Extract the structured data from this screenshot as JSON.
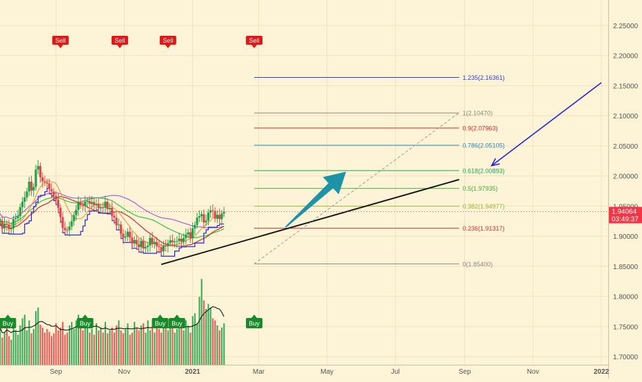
{
  "chart_data": {
    "type": "candlestick",
    "y_axis": {
      "range": [
        1.68,
        2.29
      ],
      "tick_labels": [
        "2.25000",
        "2.20000",
        "2.15000",
        "2.10000",
        "2.05000",
        "2.00000",
        "1.95000",
        "1.90000",
        "1.85000",
        "1.80000",
        "1.75000",
        "1.70000"
      ],
      "tick_values": [
        2.25,
        2.2,
        2.15,
        2.1,
        2.05,
        2.0,
        1.95,
        1.9,
        1.85,
        1.8,
        1.75,
        1.7
      ]
    },
    "x_axis": {
      "tick_labels": [
        "Sep",
        "Nov",
        "2021",
        "Mar",
        "May",
        "Jul",
        "Sep",
        "Nov",
        "2022"
      ],
      "tick_dates": [
        "2020-09-01",
        "2020-11-01",
        "2021-01-01",
        "2021-03-01",
        "2021-05-01",
        "2021-07-01",
        "2021-09-01",
        "2021-11-01",
        "2022-01-01"
      ],
      "range": [
        "2020-07-13",
        "2022-01-15"
      ]
    },
    "last_price": {
      "value": 1.94064,
      "label": "1.94064",
      "countdown": "03:49:37",
      "color": "#f23645"
    },
    "fibonacci": [
      {
        "ratio": "1.235",
        "value": 2.16361,
        "label": "1.235(2.16361)",
        "color": "#2b3fd6"
      },
      {
        "ratio": "1",
        "value": 2.1047,
        "label": "1(2.10470)",
        "color": "#888888"
      },
      {
        "ratio": "0.9",
        "value": 2.07963,
        "label": "0.9(2.07963)",
        "color": "#e02424"
      },
      {
        "ratio": "0.786",
        "value": 2.05105,
        "label": "0.786(2.05105)",
        "color": "#2a8cc4"
      },
      {
        "ratio": "0.618",
        "value": 2.00893,
        "label": "0.618(2.00893)",
        "color": "#18a85a"
      },
      {
        "ratio": "0.5",
        "value": 1.97935,
        "label": "0.5(1.97935)",
        "color": "#3cae3c"
      },
      {
        "ratio": "0.382",
        "value": 1.94977,
        "label": "0.382(1.94977)",
        "color": "#98b830"
      },
      {
        "ratio": "0.236",
        "value": 1.91317,
        "label": "0.236(1.91317)",
        "color": "#e03030"
      },
      {
        "ratio": "0",
        "value": 1.854,
        "label": "0(1.85400)",
        "color": "#888888"
      }
    ],
    "signals": {
      "sell": [
        {
          "label": "Sell",
          "date": "2020-09-05"
        },
        {
          "label": "Sell",
          "date": "2020-10-28"
        },
        {
          "label": "Sell",
          "date": "2020-12-10"
        },
        {
          "label": "Sell",
          "date": "2021-02-25"
        }
      ],
      "buy": [
        {
          "label": "Buy",
          "date": "2020-07-20"
        },
        {
          "label": "Buy",
          "date": "2020-09-27"
        },
        {
          "label": "Buy",
          "date": "2020-12-03"
        },
        {
          "label": "Buy",
          "date": "2020-12-18"
        },
        {
          "label": "Buy",
          "date": "2021-02-25"
        }
      ]
    },
    "trendlines": [
      {
        "from": {
          "date": "2020-12-04",
          "value": 1.853
        },
        "to": {
          "date": "2021-08-27",
          "value": 1.994
        },
        "color": "#1a1a1a"
      },
      {
        "from": {
          "date": "2021-02-25",
          "value": 1.854
        },
        "to": {
          "date": "2021-08-27",
          "value": 2.105
        },
        "color": "#9a9a9a",
        "dashed": true
      }
    ],
    "arrows": [
      {
        "from": {
          "date": "2021-03-25",
          "value": 1.915
        },
        "to": {
          "date": "2021-05-18",
          "value": 2.007
        },
        "color": "#1e93a8"
      },
      {
        "from": {
          "date": "2022-01-01",
          "value": 2.155
        },
        "to": {
          "date": "2021-09-25",
          "value": 2.017
        },
        "color": "#2323d4"
      }
    ],
    "price_series": {
      "start_date": "2020-07-13",
      "interval_days": 2,
      "close": [
        1.9257,
        1.9128,
        1.9208,
        1.9193,
        1.9114,
        1.9129,
        1.9282,
        1.9297,
        1.9334,
        1.9481,
        1.9571,
        1.9643,
        1.9741,
        1.9904,
        1.9759,
        1.9818,
        2.0106,
        2.0165,
        1.9979,
        1.991,
        1.9894,
        1.9875,
        1.9783,
        1.9743,
        1.967,
        1.9605,
        1.9472,
        1.9317,
        1.9137,
        1.91,
        1.9099,
        1.9159,
        1.9249,
        1.9349,
        1.9439,
        1.9563,
        1.9513,
        1.9498,
        1.9571,
        1.9587,
        1.9537,
        1.9567,
        1.9514,
        1.9535,
        1.9463,
        1.9482,
        1.9472,
        1.9572,
        1.9449,
        1.947,
        1.934,
        1.9306,
        1.9183,
        1.9193,
        1.9041,
        1.8975,
        1.8993,
        1.9074,
        1.8978,
        1.8879,
        1.8937,
        1.8863,
        1.8816,
        1.8922,
        1.8795,
        1.882,
        1.8843,
        1.8971,
        1.887,
        1.8903,
        1.8834,
        1.8817,
        1.8747,
        1.8843,
        1.8832,
        1.8885,
        1.8931,
        1.89,
        1.8908,
        1.8919,
        1.8958,
        1.8906,
        1.8969,
        1.9026,
        1.9065,
        1.8965,
        1.9129,
        1.9185,
        1.9307,
        1.9331,
        1.9365,
        1.9228,
        1.9256,
        1.9392,
        1.9428,
        1.9418,
        1.9291,
        1.9354,
        1.9282,
        1.9375,
        1.9406
      ],
      "ma_colors": {
        "ma_green": "#22c33a",
        "ma_purple": "#a05ad8",
        "ma_red": "#d22020",
        "ma_orange": "#e89a3c",
        "ma_blue": "#2020d8",
        "volume_avg": "#222222"
      }
    },
    "volume": {
      "up_color": "#22a04a",
      "down_color": "#e04848",
      "values": [
        52,
        38,
        45,
        60,
        40,
        35,
        58,
        48,
        42,
        55,
        65,
        70,
        48,
        62,
        44,
        50,
        75,
        80,
        56,
        52,
        45,
        50,
        46,
        40,
        44,
        58,
        48,
        52,
        60,
        42,
        45,
        55,
        60,
        50,
        62,
        70,
        52,
        48,
        55,
        60,
        45,
        50,
        42,
        58,
        48,
        52,
        45,
        60,
        44,
        48,
        52,
        45,
        55,
        62,
        48,
        44,
        50,
        58,
        42,
        45,
        60,
        52,
        48,
        55,
        58,
        45,
        62,
        48,
        52,
        45,
        58,
        50,
        45,
        60,
        52,
        48,
        55,
        60,
        45,
        50,
        58,
        52,
        48,
        62,
        55,
        45,
        68,
        72,
        58,
        95,
        120,
        90,
        78,
        85,
        80,
        65,
        62,
        55,
        48,
        52,
        58
      ]
    }
  }
}
